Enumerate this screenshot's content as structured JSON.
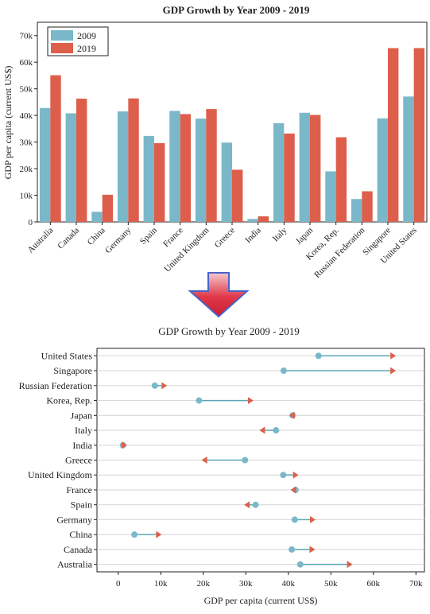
{
  "colors": {
    "y2009": "#7ab8c9",
    "y2019": "#dd5f4b",
    "connector": "#5aa6b5",
    "grid": "#d4d4d4",
    "axis": "#222222",
    "arrow_fill": "#e0384a",
    "arrow_stroke": "#4a63c8"
  },
  "arrow_icon": "down-arrow-icon",
  "chart_data": [
    {
      "type": "bar",
      "title": "GDP Growth by Year 2009 - 2019",
      "ylabel": "GDP per capita (current US$)",
      "xlabel": "",
      "ylim": [
        0,
        75000
      ],
      "yticks": [
        0,
        10000,
        20000,
        30000,
        40000,
        50000,
        60000,
        70000
      ],
      "ytick_labels": [
        "0",
        "10k",
        "20k",
        "30k",
        "40k",
        "50k",
        "60k",
        "70k"
      ],
      "legend_position": "top-left",
      "grid": false,
      "categories": [
        "Australia",
        "Canada",
        "China",
        "Germany",
        "Spain",
        "France",
        "United Kingdom",
        "Greece",
        "India",
        "Italy",
        "Japan",
        "Korea, Rep.",
        "Russian Federation",
        "Singapore",
        "United States"
      ],
      "series": [
        {
          "name": "2009",
          "values": [
            42800,
            40800,
            3800,
            41500,
            32300,
            41700,
            38800,
            29800,
            1100,
            37100,
            41000,
            19000,
            8600,
            38900,
            47100
          ]
        },
        {
          "name": "2019",
          "values": [
            55100,
            46300,
            10200,
            46400,
            29600,
            40500,
            42400,
            19600,
            2100,
            33200,
            40200,
            31800,
            11500,
            65300,
            65300
          ]
        }
      ]
    },
    {
      "type": "dumbbell",
      "title": "GDP Growth by Year 2009 - 2019",
      "xlabel": "GDP per capita (current US$)",
      "ylabel": "",
      "xlim": [
        -5000,
        72000
      ],
      "xticks": [
        0,
        10000,
        20000,
        30000,
        40000,
        50000,
        60000,
        70000
      ],
      "xtick_labels": [
        "0",
        "10k",
        "20k",
        "30k",
        "40k",
        "50k",
        "60k",
        "70k"
      ],
      "grid": true,
      "categories": [
        "United States",
        "Singapore",
        "Russian Federation",
        "Korea, Rep.",
        "Japan",
        "Italy",
        "India",
        "Greece",
        "United Kingdom",
        "France",
        "Spain",
        "Germany",
        "China",
        "Canada",
        "Australia"
      ],
      "start_2009": [
        47100,
        38900,
        8600,
        19000,
        41000,
        37100,
        1100,
        29800,
        38800,
        41700,
        32300,
        41500,
        3800,
        40800,
        42800
      ],
      "end_2019": [
        65300,
        65300,
        11500,
        31800,
        40200,
        33200,
        2100,
        19600,
        42400,
        40500,
        29600,
        46400,
        10200,
        46300,
        55100
      ]
    }
  ]
}
